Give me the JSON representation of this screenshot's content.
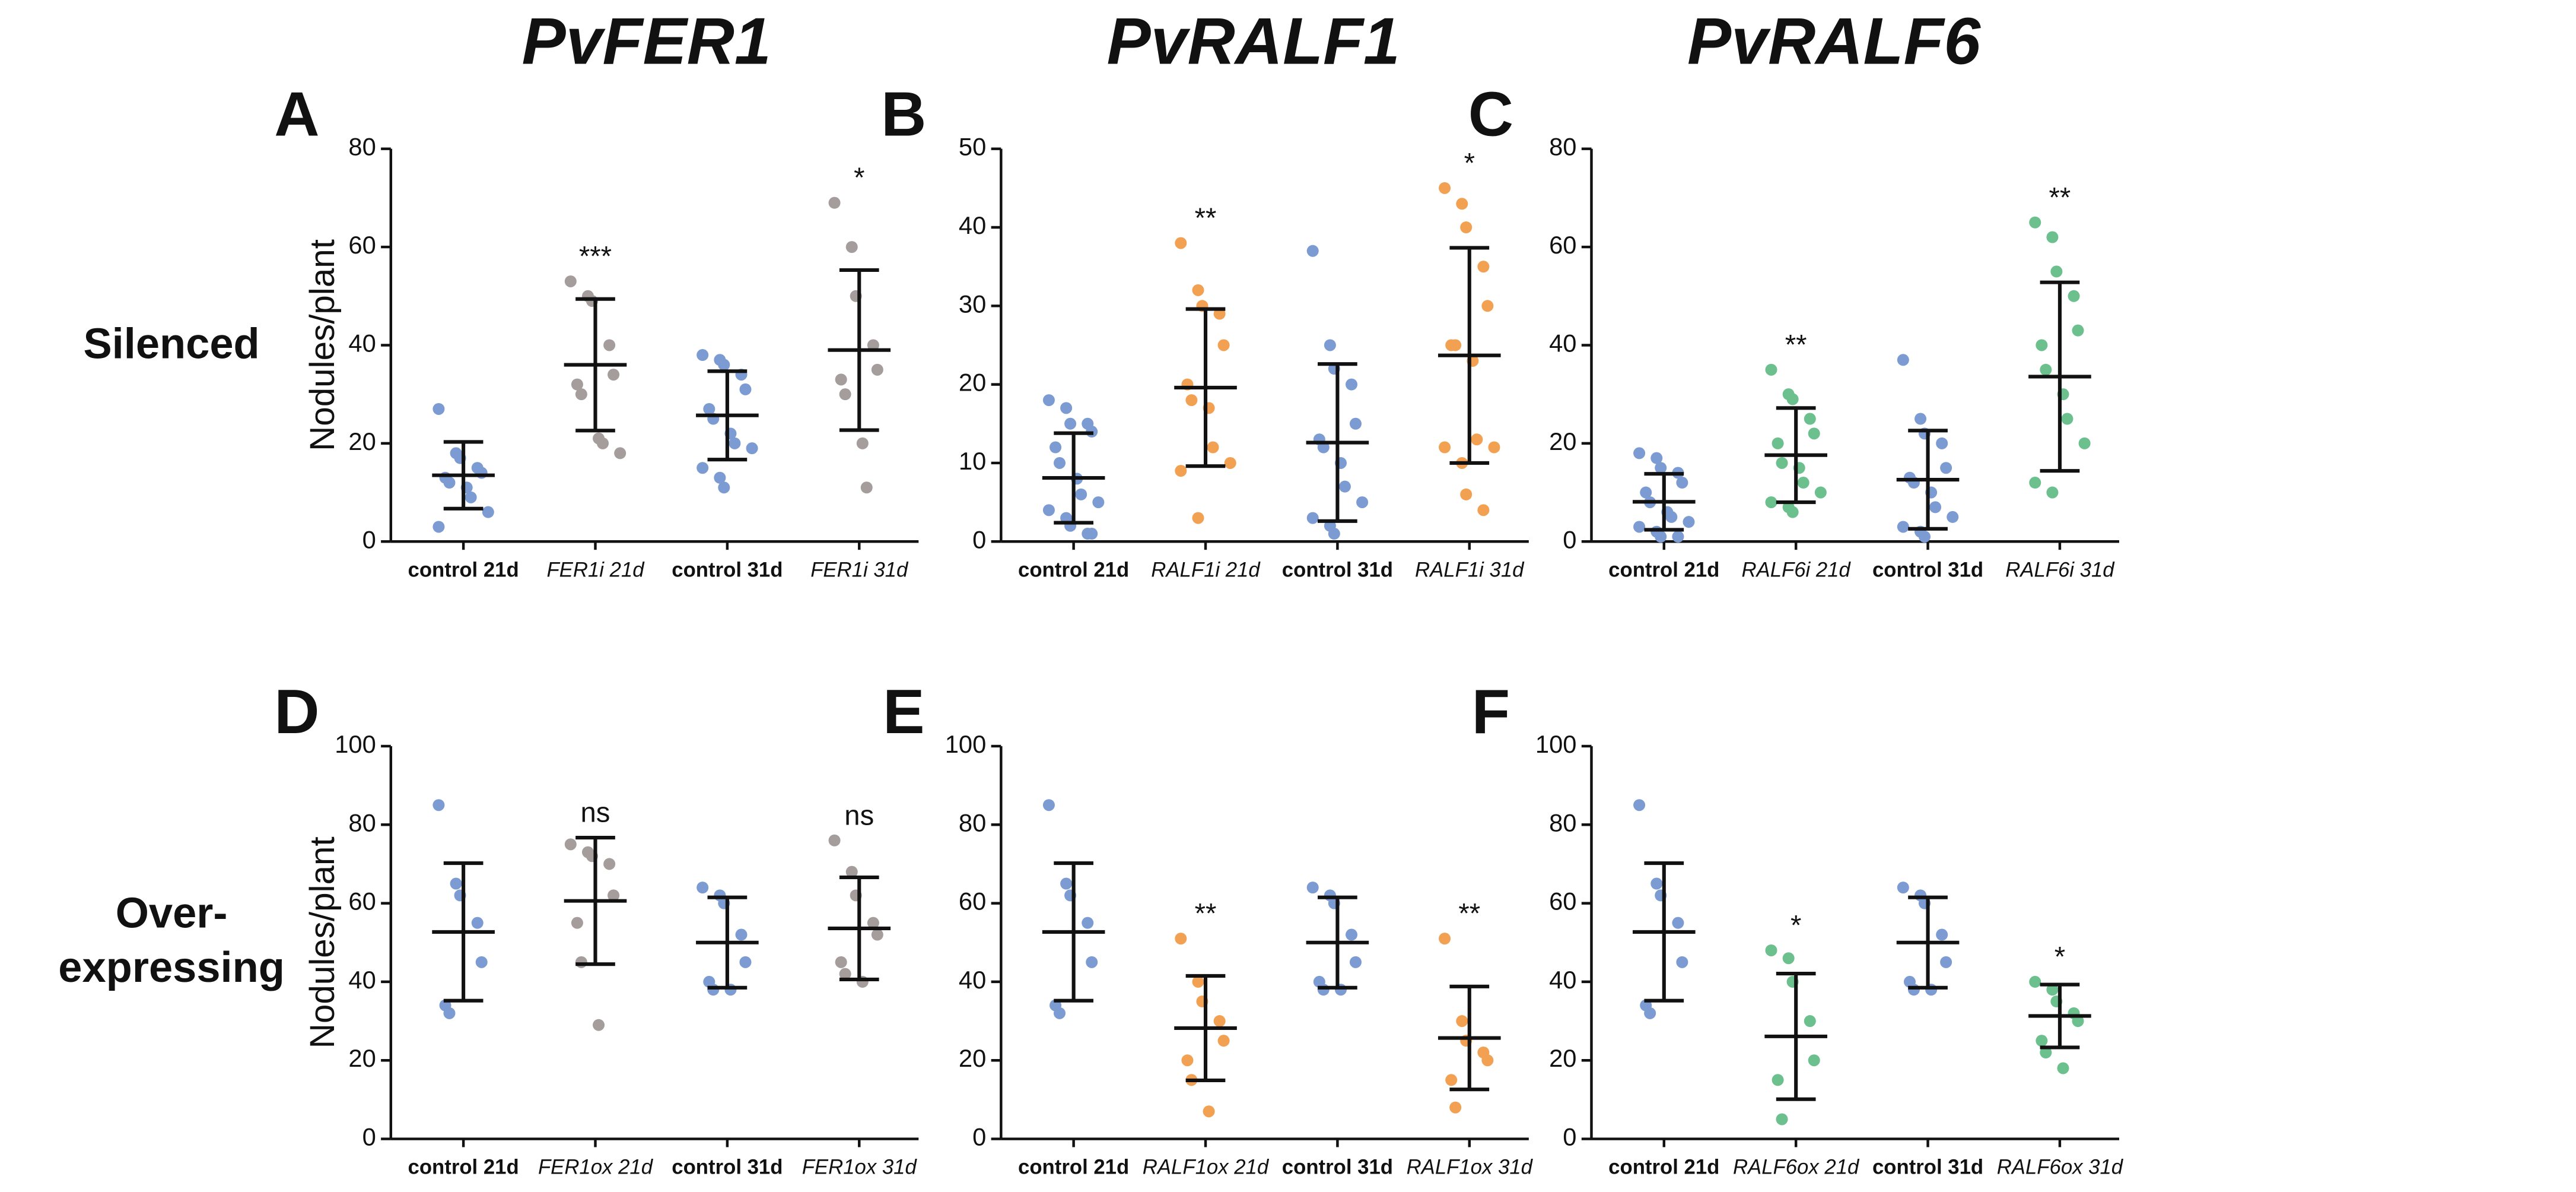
{
  "column_titles": [
    "PvFER1",
    "PvRALF1",
    "PvRALF6"
  ],
  "row_labels": [
    [
      "Silenced"
    ],
    [
      "Over-",
      "expressing"
    ]
  ],
  "chart_data": [
    {
      "type": "dot",
      "panel": "A",
      "ylabel": "Nodules/plant",
      "categories": [
        "control 21d",
        "FER1i 21d",
        "control 31d",
        "FER1i 31d"
      ],
      "colors": [
        "#7b9bd2",
        "#a59c9c",
        "#7b9bd2",
        "#a59c9c"
      ],
      "points": [
        [
          27,
          18,
          17,
          15,
          14,
          13,
          12,
          11,
          9,
          6,
          3
        ],
        [
          53,
          50,
          49,
          40,
          34,
          32,
          30,
          21,
          20,
          18
        ],
        [
          38,
          37,
          36,
          34,
          31,
          27,
          25,
          22,
          20,
          19,
          15,
          13,
          11
        ],
        [
          69,
          60,
          50,
          40,
          35,
          33,
          30,
          20,
          11
        ]
      ],
      "mean": [
        13.5,
        36,
        25.7,
        39
      ],
      "sd": [
        6.8,
        13.4,
        9,
        16.3
      ],
      "significance": [
        null,
        "***",
        null,
        "*"
      ],
      "ylim": [
        0,
        80
      ],
      "yticks": [
        0,
        20,
        40,
        60,
        80
      ]
    },
    {
      "type": "dot",
      "panel": "B",
      "categories": [
        "control 21d",
        "RALF1i 21d",
        "control 31d",
        "RALF1i 31d"
      ],
      "colors": [
        "#7b9bd2",
        "#f2a152",
        "#7b9bd2",
        "#f2a152"
      ],
      "points": [
        [
          18,
          17,
          15,
          15,
          14,
          12,
          10,
          8,
          6,
          5,
          4,
          3,
          2,
          1,
          1
        ],
        [
          38,
          32,
          30,
          29,
          25,
          20,
          18,
          17,
          12,
          10,
          9,
          3
        ],
        [
          37,
          25,
          22,
          20,
          15,
          13,
          12,
          10,
          7,
          5,
          3,
          2,
          1
        ],
        [
          45,
          43,
          40,
          35,
          30,
          25,
          25,
          23,
          13,
          12,
          12,
          10,
          6,
          4
        ]
      ],
      "mean": [
        8.1,
        19.6,
        12.6,
        23.7
      ],
      "sd": [
        5.7,
        10,
        10,
        13.7
      ],
      "significance": [
        null,
        "**",
        null,
        "*"
      ],
      "ylim": [
        0,
        50
      ],
      "yticks": [
        0,
        10,
        20,
        30,
        40,
        50
      ]
    },
    {
      "type": "dot",
      "panel": "C",
      "categories": [
        "control 21d",
        "RALF6i 21d",
        "control 31d",
        "RALF6i 31d"
      ],
      "colors": [
        "#7b9bd2",
        "#6cc08d",
        "#7b9bd2",
        "#6cc08d"
      ],
      "points": [
        [
          18,
          17,
          15,
          14,
          12,
          10,
          8,
          6,
          5,
          4,
          3,
          2,
          1,
          1
        ],
        [
          35,
          30,
          29,
          25,
          22,
          20,
          16,
          15,
          12,
          10,
          8,
          7,
          6
        ],
        [
          37,
          25,
          22,
          20,
          15,
          13,
          12,
          10,
          7,
          5,
          3,
          2,
          1
        ],
        [
          65,
          62,
          55,
          50,
          43,
          40,
          35,
          30,
          25,
          20,
          12,
          10
        ]
      ],
      "mean": [
        8.1,
        17.6,
        12.6,
        33.6
      ],
      "sd": [
        5.7,
        9.6,
        10,
        19.2
      ],
      "significance": [
        null,
        "**",
        null,
        "**"
      ],
      "ylim": [
        0,
        80
      ],
      "yticks": [
        0,
        20,
        40,
        60,
        80
      ]
    },
    {
      "type": "dot",
      "panel": "D",
      "ylabel": "Nodules/plant",
      "categories": [
        "control 21d",
        "FER1ox 21d",
        "control 31d",
        "FER1ox 31d"
      ],
      "colors": [
        "#7b9bd2",
        "#a59c9c",
        "#7b9bd2",
        "#a59c9c"
      ],
      "points": [
        [
          85,
          65,
          62,
          55,
          45,
          34,
          32
        ],
        [
          75,
          73,
          72,
          70,
          62,
          55,
          45,
          29
        ],
        [
          64,
          62,
          60,
          52,
          45,
          40,
          38,
          38
        ],
        [
          76,
          68,
          62,
          55,
          52,
          45,
          42,
          40
        ]
      ],
      "mean": [
        52.7,
        60.6,
        50,
        53.6
      ],
      "sd": [
        17.5,
        16.1,
        11.5,
        13
      ],
      "significance": [
        null,
        "ns",
        null,
        "ns"
      ],
      "ylim": [
        0,
        100
      ],
      "yticks": [
        0,
        20,
        40,
        60,
        80,
        100
      ]
    },
    {
      "type": "dot",
      "panel": "E",
      "categories": [
        "control 21d",
        "RALF1ox 21d",
        "control 31d",
        "RALF1ox 31d"
      ],
      "colors": [
        "#7b9bd2",
        "#f2a152",
        "#7b9bd2",
        "#f2a152"
      ],
      "points": [
        [
          85,
          65,
          62,
          55,
          45,
          34,
          32
        ],
        [
          51,
          40,
          35,
          30,
          25,
          20,
          15,
          7
        ],
        [
          64,
          62,
          60,
          52,
          45,
          40,
          38,
          38
        ],
        [
          51,
          30,
          25,
          22,
          20,
          15,
          8
        ]
      ],
      "mean": [
        52.7,
        28.2,
        50,
        25.7
      ],
      "sd": [
        17.5,
        13.3,
        11.5,
        13.1
      ],
      "significance": [
        null,
        "**",
        null,
        "**"
      ],
      "ylim": [
        0,
        100
      ],
      "yticks": [
        0,
        20,
        40,
        60,
        80,
        100
      ]
    },
    {
      "type": "dot",
      "panel": "F",
      "categories": [
        "control 21d",
        "RALF6ox 21d",
        "control 31d",
        "RALF6ox 31d"
      ],
      "colors": [
        "#7b9bd2",
        "#6cc08d",
        "#7b9bd2",
        "#6cc08d"
      ],
      "points": [
        [
          85,
          65,
          62,
          55,
          45,
          34,
          32
        ],
        [
          48,
          46,
          40,
          30,
          20,
          15,
          5
        ],
        [
          64,
          62,
          60,
          52,
          45,
          40,
          38,
          38
        ],
        [
          40,
          38,
          35,
          32,
          30,
          25,
          22,
          18
        ]
      ],
      "mean": [
        52.7,
        26.1,
        50,
        31.3
      ],
      "sd": [
        17.5,
        16,
        11.5,
        8
      ],
      "significance": [
        null,
        "*",
        null,
        "*"
      ],
      "ylim": [
        0,
        100
      ],
      "yticks": [
        0,
        20,
        40,
        60,
        80,
        100
      ]
    }
  ]
}
